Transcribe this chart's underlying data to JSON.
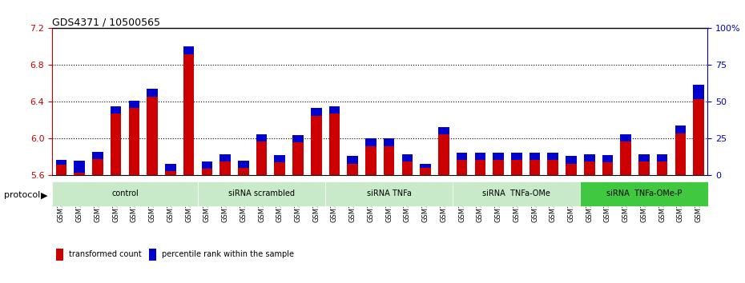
{
  "title": "GDS4371 / 10500565",
  "samples": [
    "GSM790907",
    "GSM790908",
    "GSM790909",
    "GSM790910",
    "GSM790911",
    "GSM790912",
    "GSM790913",
    "GSM790914",
    "GSM790915",
    "GSM790916",
    "GSM790917",
    "GSM790918",
    "GSM790919",
    "GSM790920",
    "GSM790921",
    "GSM790922",
    "GSM790923",
    "GSM790924",
    "GSM790925",
    "GSM790926",
    "GSM790927",
    "GSM790928",
    "GSM790929",
    "GSM790930",
    "GSM790931",
    "GSM790932",
    "GSM790933",
    "GSM790934",
    "GSM790935",
    "GSM790936",
    "GSM790937",
    "GSM790938",
    "GSM790939",
    "GSM790940",
    "GSM790941",
    "GSM790942"
  ],
  "red_values": [
    5.72,
    5.63,
    5.78,
    6.27,
    6.33,
    6.46,
    5.65,
    6.92,
    5.67,
    5.75,
    5.68,
    5.97,
    5.74,
    5.96,
    6.25,
    6.27,
    5.73,
    5.92,
    5.92,
    5.75,
    5.68,
    6.05,
    5.77,
    5.77,
    5.77,
    5.77,
    5.77,
    5.77,
    5.73,
    5.75,
    5.74,
    5.97,
    5.75,
    5.75,
    6.06,
    6.43
  ],
  "blue_values": [
    3,
    8,
    5,
    5,
    5,
    5,
    5,
    5,
    5,
    5,
    5,
    5,
    5,
    5,
    5,
    5,
    5,
    5,
    5,
    5,
    3,
    5,
    5,
    5,
    5,
    5,
    5,
    5,
    5,
    5,
    5,
    5,
    5,
    5,
    5,
    10
  ],
  "groups": [
    {
      "label": "control",
      "start": 0,
      "end": 8,
      "color": "#c8f0c8"
    },
    {
      "label": "siRNA scrambled",
      "start": 8,
      "end": 15,
      "color": "#c8f0c8"
    },
    {
      "label": "siRNA TNFa",
      "start": 15,
      "end": 22,
      "color": "#c8f0c8"
    },
    {
      "label": "siRNA  TNFa-OMe",
      "start": 22,
      "end": 29,
      "color": "#c8f0c8"
    },
    {
      "label": "siRNA  TNFa-OMe-P",
      "start": 29,
      "end": 36,
      "color": "#40c040"
    }
  ],
  "ylim_left": [
    5.6,
    7.2
  ],
  "ylim_right": [
    0,
    100
  ],
  "yticks_left": [
    5.6,
    6.0,
    6.4,
    6.8,
    7.2
  ],
  "yticks_right": [
    0,
    25,
    50,
    75,
    100
  ],
  "bar_color_red": "#cc0000",
  "bar_color_blue": "#0000cc",
  "bar_width": 0.6,
  "bg_color": "#e8e8e8",
  "plot_bg": "#ffffff",
  "protocol_label": "protocol",
  "legend_items": [
    {
      "color": "#cc0000",
      "label": "transformed count"
    },
    {
      "color": "#0000cc",
      "label": "percentile rank within the sample"
    }
  ]
}
